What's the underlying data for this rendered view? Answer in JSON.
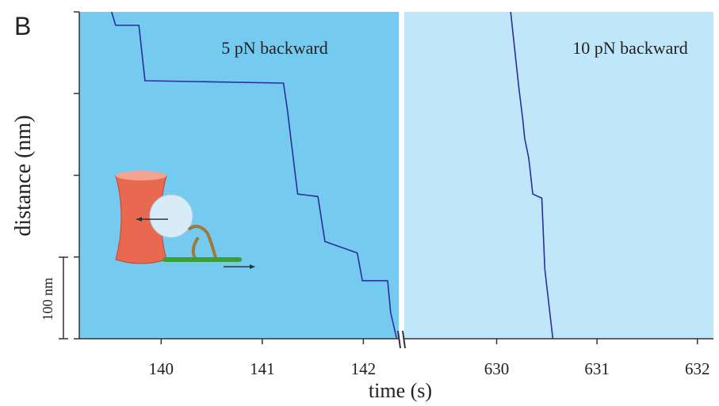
{
  "panel_label": "B",
  "y_label": "distance (nm)",
  "x_label": "time (s)",
  "scale_bar_label": "100 nm",
  "chart_data": [
    {
      "type": "line",
      "annotation": "5 pN backward",
      "background": "#74cbef",
      "color": "#2b2e9e",
      "xlim": [
        139.19,
        142.35
      ],
      "xticks": [
        140,
        141,
        142
      ],
      "ylim": [
        0,
        400
      ],
      "yticks": [
        0,
        100,
        200,
        300,
        400
      ],
      "x": [
        139.51,
        139.55,
        139.78,
        139.84,
        141.21,
        141.25,
        141.29,
        141.35,
        141.55,
        141.62,
        141.94,
        141.99,
        142.24,
        142.27,
        142.33
      ],
      "values": [
        400,
        383.5,
        383.5,
        315.7,
        312.8,
        279,
        238,
        177,
        174,
        119,
        105,
        71,
        71,
        32,
        0
      ]
    },
    {
      "type": "line",
      "annotation": "10 pN backward",
      "background": "#bfe6f9",
      "color": "#2b2e9e",
      "xlim": [
        629.08,
        632.16
      ],
      "xticks": [
        630,
        631,
        632
      ],
      "ylim": [
        0,
        400
      ],
      "yticks": [
        0,
        100,
        200,
        300,
        400
      ],
      "x": [
        630.14,
        630.22,
        630.26,
        630.28,
        630.32,
        630.36,
        630.45,
        630.48,
        630.56
      ],
      "values": [
        400,
        308,
        269,
        245,
        221,
        177,
        172,
        85,
        0
      ]
    }
  ]
}
